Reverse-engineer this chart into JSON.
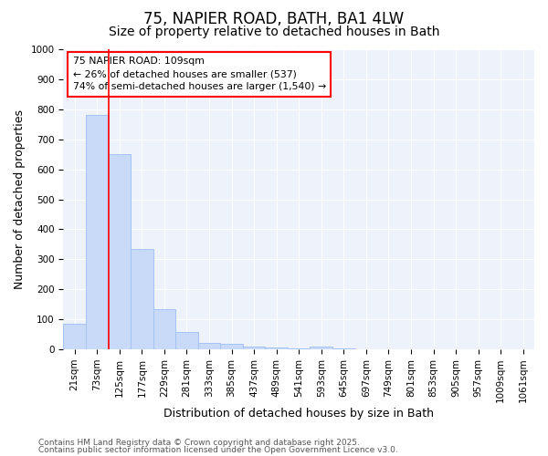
{
  "title1": "75, NAPIER ROAD, BATH, BA1 4LW",
  "title2": "Size of property relative to detached houses in Bath",
  "xlabel": "Distribution of detached houses by size in Bath",
  "ylabel": "Number of detached properties",
  "categories": [
    "21sqm",
    "73sqm",
    "125sqm",
    "177sqm",
    "229sqm",
    "281sqm",
    "333sqm",
    "385sqm",
    "437sqm",
    "489sqm",
    "541sqm",
    "593sqm",
    "645sqm",
    "697sqm",
    "749sqm",
    "801sqm",
    "853sqm",
    "905sqm",
    "957sqm",
    "1009sqm",
    "1061sqm"
  ],
  "values": [
    85,
    780,
    650,
    335,
    133,
    58,
    22,
    18,
    8,
    5,
    4,
    8,
    2,
    0,
    0,
    0,
    0,
    0,
    0,
    0,
    0
  ],
  "bar_color": "#c9daf8",
  "bar_edge_color": "#a4c2f4",
  "vline_index": 2,
  "vline_color": "red",
  "ylim": [
    0,
    1000
  ],
  "yticks": [
    0,
    100,
    200,
    300,
    400,
    500,
    600,
    700,
    800,
    900,
    1000
  ],
  "annotation_text": "75 NAPIER ROAD: 109sqm\n← 26% of detached houses are smaller (537)\n74% of semi-detached houses are larger (1,540) →",
  "annotation_box_edgecolor": "red",
  "annotation_box_facecolor": "white",
  "footer1": "Contains HM Land Registry data © Crown copyright and database right 2025.",
  "footer2": "Contains public sector information licensed under the Open Government Licence v3.0.",
  "bg_color": "#ffffff",
  "plot_bg_color": "#eef2fb",
  "grid_color": "#ffffff",
  "title_fontsize": 12,
  "subtitle_fontsize": 10,
  "tick_fontsize": 7.5,
  "ylabel_fontsize": 9,
  "xlabel_fontsize": 9
}
